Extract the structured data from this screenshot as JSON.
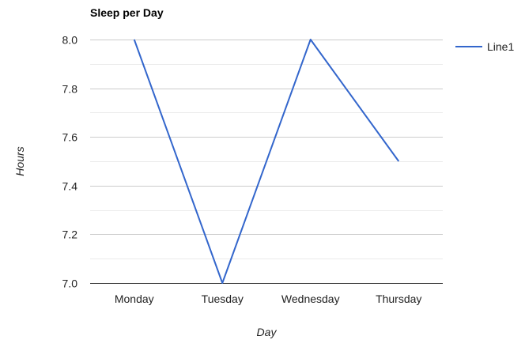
{
  "chart_data": {
    "type": "line",
    "title": "Sleep per Day",
    "xlabel": "Day",
    "ylabel": "Hours",
    "categories": [
      "Monday",
      "Tuesday",
      "Wednesday",
      "Thursday"
    ],
    "series": [
      {
        "name": "Line1",
        "values": [
          8.0,
          7.0,
          8.0,
          7.5
        ],
        "color": "#3366cc"
      }
    ],
    "ylim": [
      7.0,
      8.0
    ],
    "yticks": [
      "7.0",
      "7.2",
      "7.4",
      "7.6",
      "7.8",
      "8.0"
    ],
    "yminor_step": 0.1,
    "grid": true,
    "legend_position": "right",
    "colors": {
      "line": "#3366cc",
      "grid_major": "#cccccc",
      "grid_minor": "#ebebeb",
      "axis": "#333333",
      "tick_text": "#222222",
      "label_text": "#222222"
    }
  }
}
